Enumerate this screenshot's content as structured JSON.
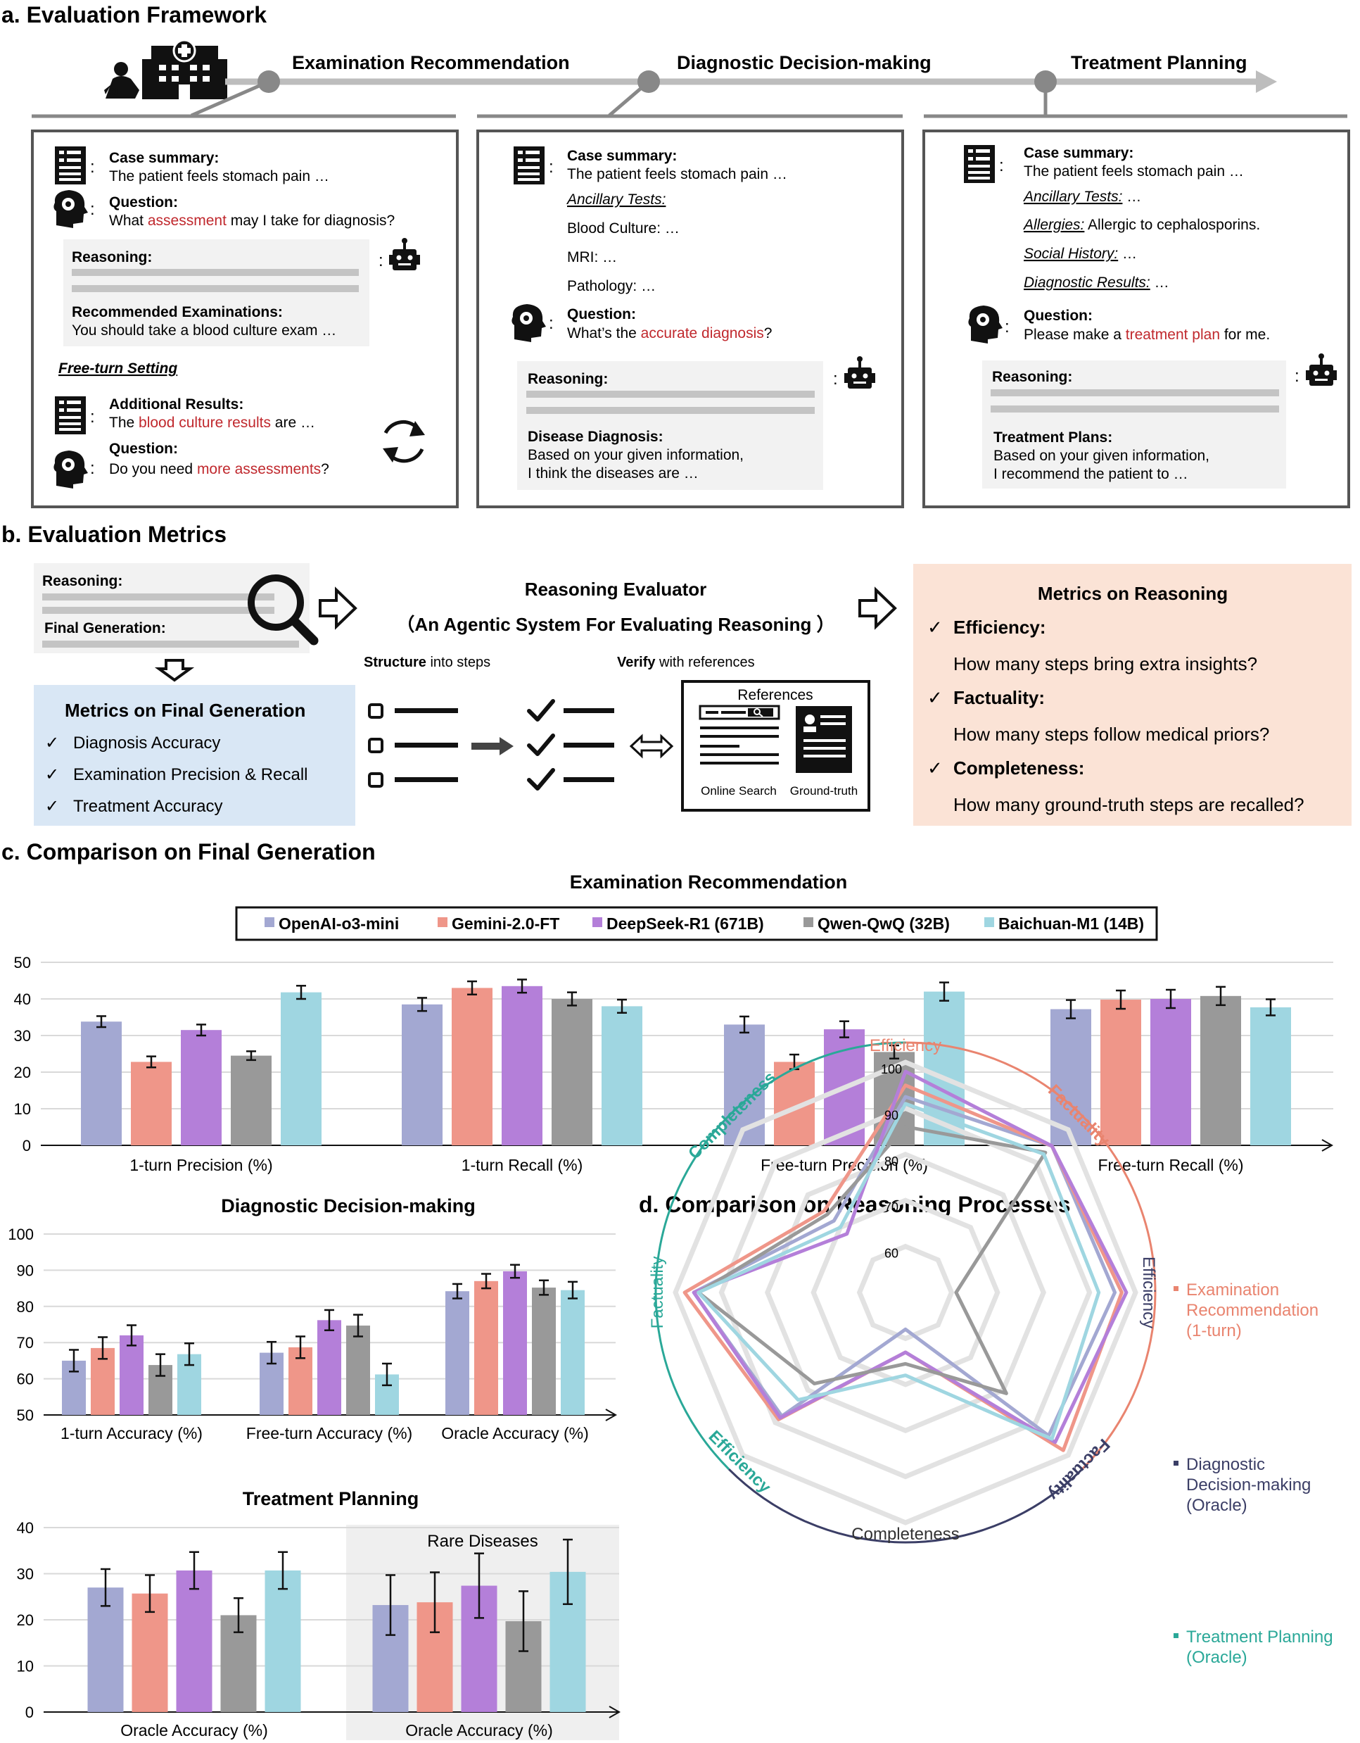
{
  "sections": {
    "a": "a. Evaluation Framework",
    "b": "b. Evaluation Metrics",
    "c": "c. Comparison on Final Generation",
    "d": "d. Comparison on Reasoning Processes"
  },
  "timeline": {
    "stage1": "Examination Recommendation",
    "stage2": "Diagnostic Decision-making",
    "stage3": "Treatment Planning"
  },
  "panel1": {
    "case_label": "Case summary:",
    "case_text": "The patient feels stomach pain …",
    "question_label": "Question:",
    "q_pre": "What ",
    "q_red": "assessment",
    "q_post": " may I take for diagnosis?",
    "reasoning_label": "Reasoning:",
    "rec_label": "Recommended Examinations:",
    "rec_text": "You should take a blood culture exam …",
    "free_turn": "Free-turn Setting",
    "add_label": "Additional Results:",
    "add_pre": "The ",
    "add_red": "blood culture results",
    "add_post": " are …",
    "q2_label": "Question:",
    "q2_pre": "Do you need ",
    "q2_red": "more assessments",
    "q2_post": "?"
  },
  "panel2": {
    "case_label": "Case summary:",
    "case_text": "The patient feels stomach pain …",
    "ancillary": "Ancillary Tests:",
    "blood": "Blood Culture: …",
    "mri": "MRI: …",
    "pathology": "Pathology: …",
    "question_label": "Question:",
    "q_pre": "What’s the ",
    "q_red": "accurate diagnosis",
    "q_post": "?",
    "reasoning_label": "Reasoning:",
    "dx_label": "Disease Diagnosis:",
    "dx_line1": "Based on your given information,",
    "dx_line2": "I think the diseases are …"
  },
  "panel3": {
    "case_label": "Case summary:",
    "case_text": "The patient feels stomach pain …",
    "ancillary_key": "Ancillary Tests:",
    "ancillary_val": " …",
    "allergies_key": "Allergies:",
    "allergies_val": " Allergic to cephalosporins.",
    "social_key": "Social History:",
    "social_val": " …",
    "dxres_key": "Diagnostic Results:",
    "dxres_val": " …",
    "question_label": "Question:",
    "q_pre": "Please make a ",
    "q_red": "treatment plan",
    "q_post": " for me.",
    "reasoning_label": "Reasoning:",
    "tp_label": "Treatment Plans:",
    "tp_line1": "Based on your given information,",
    "tp_line2": "I recommend the patient to …"
  },
  "metrics": {
    "reasoning_label": "Reasoning:",
    "final_label": "Final Generation:",
    "evaluator_title": "Reasoning Evaluator",
    "evaluator_sub": "（An Agentic System For Evaluating Reasoning ）",
    "structure_bold": "Structure",
    "structure_rest": " into steps",
    "verify_bold": "Verify",
    "verify_rest": " with references",
    "references": "References",
    "online_search": "Online Search",
    "ground_truth": "Ground-truth",
    "final_box_title": "Metrics on Final Generation",
    "final_items": [
      "Diagnosis Accuracy",
      "Examination Precision & Recall",
      "Treatment Accuracy"
    ],
    "reason_box_title": "Metrics on Reasoning",
    "reason_items": [
      {
        "name": "Efficiency:",
        "q": "How many steps bring extra insights?"
      },
      {
        "name": "Factuality:",
        "q": "How many steps follow medical priors?"
      },
      {
        "name": "Completeness:",
        "q": "How many ground-truth steps are recalled?"
      }
    ],
    "check": "✓"
  },
  "colors": {
    "o3": "#a3a8d2",
    "gemini": "#ef9689",
    "deepseek": "#b47fd9",
    "qwq": "#999999",
    "baichuan": "#9fd6e1",
    "red_text": "#c0282d",
    "blue_box": "#d9e7f5",
    "orange_box": "#fbe3d6",
    "exam_line": "#e9846f",
    "diag_line": "#3b3e66",
    "treat_line": "#2aa898"
  },
  "legend": [
    "OpenAI-o3-mini",
    "Gemini-2.0-FT",
    "DeepSeek-R1 (671B)",
    "Qwen-QwQ (32B)",
    "Baichuan-M1 (14B)"
  ],
  "chart_data": [
    {
      "type": "bar",
      "title": "Examination Recommendation",
      "categories": [
        "1-turn Precision (%)",
        "1-turn Recall (%)",
        "Free-turn Precision (%)",
        "Free-turn Recall (%)"
      ],
      "ylim": [
        0,
        50
      ],
      "yticks": [
        0,
        10,
        20,
        30,
        40,
        50
      ],
      "series": [
        {
          "name": "OpenAI-o3-mini",
          "values": [
            33.8,
            38.5,
            33.0,
            37.2
          ],
          "err": [
            1.5,
            1.8,
            2.2,
            2.5
          ]
        },
        {
          "name": "Gemini-2.0-FT",
          "values": [
            22.8,
            43.0,
            22.8,
            39.8
          ],
          "err": [
            1.5,
            1.8,
            2.0,
            2.5
          ]
        },
        {
          "name": "DeepSeek-R1 (671B)",
          "values": [
            31.5,
            43.5,
            31.7,
            40.0
          ],
          "err": [
            1.5,
            1.8,
            2.2,
            2.5
          ]
        },
        {
          "name": "Qwen-QwQ (32B)",
          "values": [
            24.5,
            40.0,
            25.5,
            40.8
          ],
          "err": [
            1.2,
            1.8,
            1.8,
            2.5
          ]
        },
        {
          "name": "Baichuan-M1 (14B)",
          "values": [
            41.8,
            38.0,
            42.0,
            37.7
          ],
          "err": [
            1.8,
            1.8,
            2.5,
            2.2
          ]
        }
      ]
    },
    {
      "type": "bar",
      "title": "Diagnostic Decision-making",
      "categories": [
        "1-turn Accuracy (%)",
        "Free-turn Accuracy (%)",
        "Oracle Accuracy (%)"
      ],
      "ylim": [
        50,
        100
      ],
      "yticks": [
        50,
        60,
        70,
        80,
        90,
        100
      ],
      "series": [
        {
          "name": "OpenAI-o3-mini",
          "values": [
            65.0,
            67.2,
            84.2
          ],
          "err": [
            3.0,
            3.0,
            2.0
          ]
        },
        {
          "name": "Gemini-2.0-FT",
          "values": [
            68.5,
            68.7,
            87.0
          ],
          "err": [
            3.0,
            3.0,
            2.0
          ]
        },
        {
          "name": "DeepSeek-R1 (671B)",
          "values": [
            72.0,
            76.2,
            89.7
          ],
          "err": [
            2.8,
            2.8,
            1.8
          ]
        },
        {
          "name": "Qwen-QwQ (32B)",
          "values": [
            63.8,
            74.7,
            85.2
          ],
          "err": [
            3.0,
            3.0,
            2.0
          ]
        },
        {
          "name": "Baichuan-M1 (14B)",
          "values": [
            66.8,
            61.2,
            84.5
          ],
          "err": [
            3.0,
            3.0,
            2.3
          ]
        }
      ]
    },
    {
      "type": "bar",
      "title": "Treatment Planning",
      "categories": [
        "Oracle Accuracy (%)",
        "Oracle Accuracy (%)"
      ],
      "group_annotation": "Rare Diseases",
      "ylim": [
        0,
        40
      ],
      "yticks": [
        0,
        10,
        20,
        30,
        40
      ],
      "series": [
        {
          "name": "OpenAI-o3-mini",
          "values": [
            27.0,
            23.2
          ],
          "err": [
            4.0,
            6.5
          ]
        },
        {
          "name": "Gemini-2.0-FT",
          "values": [
            25.7,
            23.8
          ],
          "err": [
            4.0,
            6.5
          ]
        },
        {
          "name": "DeepSeek-R1 (671B)",
          "values": [
            30.7,
            27.4
          ],
          "err": [
            4.0,
            7.0
          ]
        },
        {
          "name": "Qwen-QwQ (32B)",
          "values": [
            21.0,
            19.7
          ],
          "err": [
            3.7,
            6.5
          ]
        },
        {
          "name": "Baichuan-M1 (14B)",
          "values": [
            30.7,
            30.4
          ],
          "err": [
            4.0,
            7.0
          ]
        }
      ]
    },
    {
      "type": "radar",
      "axes": [
        "Efficiency",
        "Factuality",
        "Efficiency",
        "Factuality",
        "Completeness",
        "Efficiency",
        "Factuality",
        "Completeness"
      ],
      "rlim": [
        50,
        100
      ],
      "rticks": [
        60,
        70,
        80,
        90,
        100
      ],
      "groups": [
        {
          "name": "Examination Recommendation (1-turn)",
          "axes_index": [
            0,
            1,
            7
          ]
        },
        {
          "name": "Diagnostic Decision-making (Oracle)",
          "axes_index": [
            2,
            3,
            4
          ]
        },
        {
          "name": "Treatment Planning (Oracle)",
          "axes_index": [
            5,
            6
          ]
        }
      ],
      "group_labels": [
        [
          "Examination",
          "Recommendation",
          "(1-turn)"
        ],
        [
          "Diagnostic",
          "Decision-making",
          "(Oracle)"
        ],
        [
          "Treatment Planning",
          "(Oracle)"
        ]
      ],
      "series": [
        {
          "name": "OpenAI-o3-mini",
          "values": [
            92.5,
            95.0,
            95.5,
            94.0,
            58.0,
            88.0,
            96.0,
            72.0
          ]
        },
        {
          "name": "Gemini-2.0-FT",
          "values": [
            95.0,
            95.0,
            97.0,
            98.5,
            63.0,
            89.0,
            98.0,
            75.0
          ]
        },
        {
          "name": "DeepSeek-R1 (671B)",
          "values": [
            98.0,
            95.0,
            98.0,
            96.0,
            63.0,
            88.5,
            96.0,
            68.0
          ]
        },
        {
          "name": "Qwen-QwQ (32B)",
          "values": [
            86.0,
            93.0,
            61.0,
            81.0,
            65.5,
            78.0,
            95.0,
            74.0
          ]
        },
        {
          "name": "Baichuan-M1 (14B)",
          "values": [
            91.0,
            92.5,
            92.0,
            95.0,
            68.0,
            83.0,
            95.0,
            70.0
          ]
        }
      ]
    }
  ]
}
